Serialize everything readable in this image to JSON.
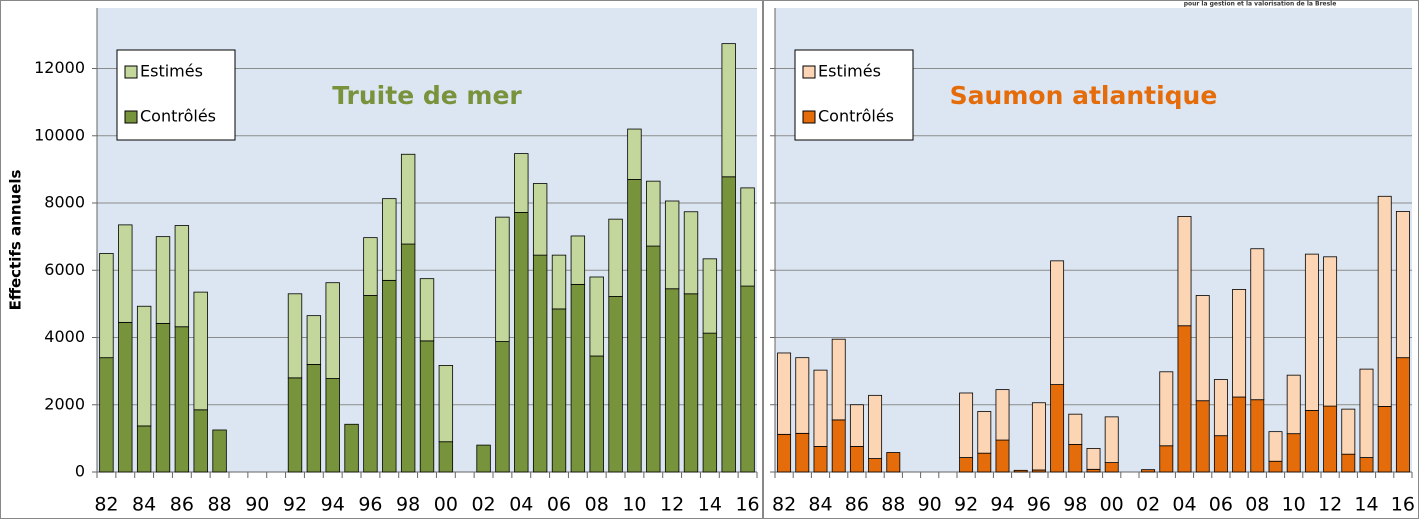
{
  "header_text": "pour la gestion et la valorisation de la Bresle",
  "chart_data": [
    {
      "type": "bar",
      "stacked": true,
      "title": "Truite de mer",
      "title_color": "#77933c",
      "y_label": "Effectifs annuels",
      "categories": [
        "82",
        null,
        "84",
        null,
        "86",
        null,
        "88",
        null,
        "90",
        null,
        "92",
        null,
        "94",
        null,
        "96",
        null,
        "98",
        null,
        "00",
        null,
        "02",
        null,
        "04",
        null,
        "06",
        null,
        "08",
        null,
        "10",
        null,
        "12",
        null,
        "14",
        null,
        "16"
      ],
      "series": [
        {
          "name": "Contrôlés",
          "color": "#77933c",
          "values": [
            3400,
            4450,
            1370,
            4420,
            4320,
            1850,
            1250,
            null,
            null,
            null,
            2800,
            3200,
            2780,
            1420,
            5250,
            5700,
            6780,
            3900,
            900,
            null,
            800,
            3880,
            7720,
            6450,
            4850,
            5580,
            3450,
            5220,
            8700,
            6720,
            5450,
            5300,
            4130,
            8780,
            5530
          ]
        },
        {
          "name": "Estimés",
          "color": "#c3d69b",
          "values": [
            3100,
            2900,
            3560,
            2580,
            3010,
            3500,
            0,
            null,
            null,
            null,
            2500,
            1450,
            2850,
            0,
            1720,
            2430,
            2670,
            1850,
            2270,
            null,
            0,
            3700,
            1750,
            2130,
            1600,
            1440,
            2350,
            2300,
            1500,
            1930,
            2610,
            2440,
            2210,
            3960,
            2920
          ]
        }
      ],
      "ylim": [
        0,
        13800
      ],
      "yticks": [
        0,
        2000,
        4000,
        6000,
        8000,
        10000,
        12000
      ],
      "tick_labels": true,
      "grid": true,
      "legend": "top-left",
      "background": "#dce6f2"
    },
    {
      "type": "bar",
      "stacked": true,
      "title": "Saumon atlantique",
      "title_color": "#e46c0a",
      "categories": [
        "82",
        null,
        "84",
        null,
        "86",
        null,
        "88",
        null,
        "90",
        null,
        "92",
        null,
        "94",
        null,
        "96",
        null,
        "98",
        null,
        "00",
        null,
        "02",
        null,
        "04",
        null,
        "06",
        null,
        "08",
        null,
        "10",
        null,
        "12",
        null,
        "14",
        null,
        "16"
      ],
      "series": [
        {
          "name": "Contrôlés",
          "color": "#e46c0a",
          "values": [
            1120,
            1150,
            760,
            1550,
            760,
            400,
            580,
            null,
            null,
            null,
            430,
            560,
            950,
            50,
            60,
            2600,
            820,
            80,
            280,
            null,
            70,
            780,
            4350,
            2120,
            1080,
            2230,
            2150,
            320,
            1140,
            1830,
            1960,
            530,
            430,
            1950,
            3400
          ]
        },
        {
          "name": "Estimés",
          "color": "#fcd5b5",
          "values": [
            2420,
            2250,
            2270,
            2400,
            1240,
            1880,
            0,
            null,
            null,
            null,
            1920,
            1240,
            1500,
            0,
            2000,
            3680,
            900,
            620,
            1360,
            null,
            0,
            2200,
            3250,
            3130,
            1670,
            3200,
            4490,
            880,
            1740,
            4650,
            4440,
            1340,
            2630,
            6250,
            4350
          ]
        }
      ],
      "ylim": [
        0,
        13800
      ],
      "yticks": [
        0,
        2000,
        4000,
        6000,
        8000,
        10000,
        12000
      ],
      "tick_labels": false,
      "grid": true,
      "legend": "top-left",
      "background": "#dce6f2"
    }
  ]
}
